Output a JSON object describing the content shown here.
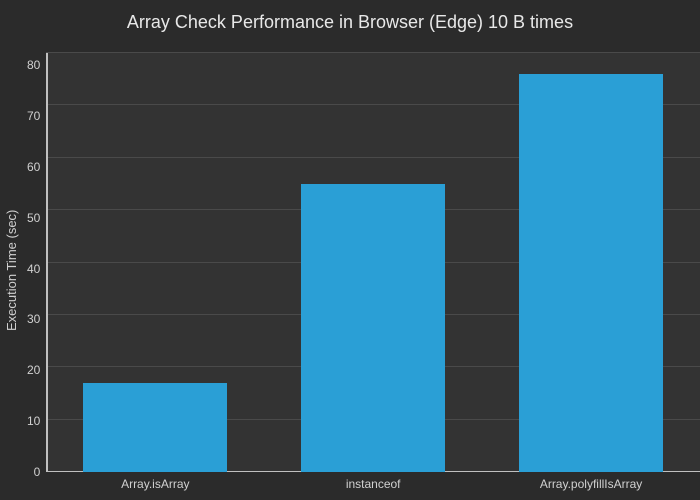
{
  "chart": {
    "type": "bar",
    "title": "Array Check Performance in Browser (Edge) 10 B times",
    "title_fontsize": 18,
    "title_color": "#e8e8e8",
    "ylabel": "Execution Time (sec)",
    "ylabel_fontsize": 13,
    "ylabel_color": "#d0d0d0",
    "background_color": "#2b2b2b",
    "plot_background_color": "#333333",
    "grid_color": "#4a4a4a",
    "axis_line_color": "#c0c0c0",
    "tick_color": "#d0d0d0",
    "tick_fontsize": 12,
    "ylim": [
      0,
      80
    ],
    "ytick_step": 10,
    "yticks": [
      0,
      10,
      20,
      30,
      40,
      50,
      60,
      70,
      80
    ],
    "categories": [
      "Array.isArray",
      "instanceof",
      "Array.polyfillIsArray"
    ],
    "values": [
      17,
      55,
      76
    ],
    "bar_colors": [
      "#2a9fd6",
      "#2a9fd6",
      "#2a9fd6"
    ],
    "bar_width_pct": 66
  }
}
